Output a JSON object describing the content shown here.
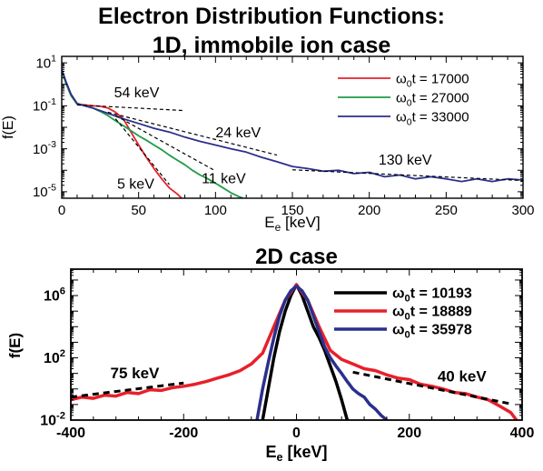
{
  "page": {
    "title_line1": "Electron Distribution Functions:",
    "title_line2": "1D, immobile ion case"
  },
  "chart_data": [
    {
      "type": "line",
      "title": "",
      "xlabel_base": "E",
      "xlabel_sub": "e",
      "xlabel_unit": " [keV]",
      "ylabel": "f(E)",
      "xlim": [
        0,
        300
      ],
      "ylim": [
        5e-06,
        20
      ],
      "yscale": "log",
      "xticks": [
        0,
        50,
        100,
        150,
        200,
        250,
        300
      ],
      "yticks": [
        {
          "value": 10,
          "mantissa": "10",
          "exponent": "1"
        },
        {
          "value": 0.1,
          "mantissa": "10",
          "exponent": "-1"
        },
        {
          "value": 0.001,
          "mantissa": "10",
          "exponent": "-3"
        },
        {
          "value": 1e-05,
          "mantissa": "10",
          "exponent": "-5"
        }
      ],
      "legend_position": "top-right",
      "series": [
        {
          "legend_base": "ω",
          "legend_sub": "0",
          "legend_rest": "t = 17000",
          "color": "#e8202a",
          "x": [
            0,
            3,
            6,
            10,
            15,
            20,
            25,
            30,
            35,
            40,
            45,
            50,
            55,
            60,
            65,
            70,
            75,
            78
          ],
          "y": [
            4,
            1.0,
            0.3,
            0.12,
            0.11,
            0.1,
            0.095,
            0.08,
            0.05,
            0.025,
            0.006,
            0.0015,
            0.0004,
            0.00012,
            4e-05,
            1.5e-05,
            8e-06,
            5e-06
          ]
        },
        {
          "legend_base": "ω",
          "legend_sub": "0",
          "legend_rest": "t = 27000",
          "color": "#1f9b45",
          "x": [
            0,
            3,
            6,
            10,
            15,
            20,
            25,
            30,
            35,
            40,
            45,
            50,
            55,
            60,
            65,
            70,
            75,
            80,
            85,
            90,
            95,
            100,
            105,
            110,
            115,
            118
          ],
          "y": [
            4,
            1.0,
            0.3,
            0.12,
            0.1,
            0.08,
            0.055,
            0.035,
            0.02,
            0.012,
            0.007,
            0.004,
            0.0025,
            0.0015,
            0.0009,
            0.0005,
            0.0003,
            0.00018,
            0.0001,
            6e-05,
            4e-05,
            2.5e-05,
            1.5e-05,
            9e-06,
            6e-06,
            5e-06
          ]
        },
        {
          "legend_base": "ω",
          "legend_sub": "0",
          "legend_rest": "t = 33000",
          "color": "#2b2f8c",
          "x": [
            0,
            3,
            6,
            10,
            15,
            20,
            30,
            40,
            50,
            60,
            70,
            80,
            90,
            100,
            110,
            120,
            130,
            140,
            150,
            160,
            170,
            180,
            190,
            200,
            210,
            220,
            230,
            240,
            250,
            260,
            270,
            280,
            290,
            300
          ],
          "y": [
            5,
            1.2,
            0.35,
            0.13,
            0.1,
            0.08,
            0.045,
            0.025,
            0.015,
            0.009,
            0.006,
            0.0035,
            0.0022,
            0.0015,
            0.001,
            0.0007,
            0.0004,
            0.00025,
            0.00015,
            0.00012,
            9e-05,
            0.0001,
            7e-05,
            8e-05,
            5e-05,
            6e-05,
            4e-05,
            5e-05,
            4e-05,
            3e-05,
            4e-05,
            3e-05,
            4e-05,
            3.5e-05
          ]
        }
      ],
      "fits": [
        {
          "x": [
            10,
            80
          ],
          "y": [
            0.11,
            0.06
          ]
        },
        {
          "x": [
            35,
            70
          ],
          "y": [
            0.025,
            2.15e-05
          ]
        },
        {
          "x": [
            30,
            140
          ],
          "y": [
            0.05,
            0.00051
          ]
        },
        {
          "x": [
            35,
            100
          ],
          "y": [
            0.035,
            9.3e-05
          ]
        },
        {
          "x": [
            150,
            300
          ],
          "y": [
            0.000105,
            3.33e-05
          ]
        }
      ],
      "annotations": [
        {
          "text": "54 keV",
          "x": 34,
          "y": 0.25
        },
        {
          "text": "24 keV",
          "x": 100,
          "y": 0.0035
        },
        {
          "text": "130 keV",
          "x": 206,
          "y": 0.00018
        },
        {
          "text": "5 keV",
          "x": 36,
          "y": 1.4e-05
        },
        {
          "text": "11 keV",
          "x": 91,
          "y": 2.5e-05
        }
      ]
    },
    {
      "type": "line",
      "title": "2D case",
      "xlabel_base": "E",
      "xlabel_sub": "e",
      "xlabel_unit": " [keV]",
      "ylabel": "f(E)",
      "xlim": [
        -400,
        400
      ],
      "ylim": [
        0.01,
        50000000.0
      ],
      "yscale": "log",
      "xticks": [
        -400,
        -200,
        0,
        200,
        400
      ],
      "yticks": [
        {
          "value": 1000000,
          "mantissa": "10",
          "exponent": "6"
        },
        {
          "value": 100,
          "mantissa": "10",
          "exponent": "2"
        },
        {
          "value": 0.01,
          "mantissa": "10",
          "exponent": "-2"
        }
      ],
      "legend_position": "top-right",
      "series": [
        {
          "legend_base": "ω",
          "legend_sub": "0",
          "legend_rest": "t = 10193",
          "color": "#000000",
          "x": [
            -60,
            -50,
            -40,
            -30,
            -20,
            -10,
            0,
            10,
            20,
            30,
            40,
            50,
            60,
            70,
            80,
            90
          ],
          "y": [
            0.01,
            1,
            100,
            5000,
            100000,
            1000000,
            5000000,
            1000000,
            100000,
            10000,
            2000,
            300,
            30,
            3,
            0.2,
            0.01
          ]
        },
        {
          "legend_base": "ω",
          "legend_sub": "0",
          "legend_rest": "t = 18889",
          "color": "#e8202a",
          "x": [
            -400,
            -380,
            -360,
            -340,
            -320,
            -300,
            -280,
            -260,
            -240,
            -220,
            -200,
            -180,
            -160,
            -140,
            -120,
            -100,
            -80,
            -60,
            -40,
            -20,
            0,
            20,
            40,
            60,
            80,
            100,
            120,
            140,
            160,
            180,
            200,
            220,
            240,
            260,
            280,
            300,
            320,
            340,
            360,
            380,
            390
          ],
          "y": [
            0.2,
            0.3,
            0.25,
            0.4,
            0.35,
            0.6,
            0.5,
            0.9,
            0.8,
            1.2,
            1.5,
            2,
            3,
            5,
            8,
            15,
            40,
            200,
            10000,
            500000,
            5000000,
            500000,
            10000,
            300,
            80,
            40,
            20,
            15,
            8,
            5,
            4,
            2,
            1.5,
            1,
            0.6,
            0.5,
            0.3,
            0.2,
            0.08,
            0.03,
            0.01
          ]
        },
        {
          "legend_base": "ω",
          "legend_sub": "0",
          "legend_rest": "t = 35978",
          "color": "#2b2f8c",
          "x": [
            -70,
            -60,
            -50,
            -40,
            -30,
            -20,
            -10,
            0,
            10,
            20,
            30,
            40,
            50,
            60,
            70,
            80,
            90,
            100,
            110,
            120,
            130,
            140,
            150,
            160
          ],
          "y": [
            0.01,
            1,
            50,
            2000,
            50000,
            500000,
            2000000,
            4000000,
            2000000,
            500000,
            50000,
            5000,
            500,
            100,
            30,
            10,
            3,
            1,
            0.5,
            0.3,
            0.1,
            0.05,
            0.02,
            0.01
          ]
        }
      ],
      "fits": [
        {
          "x": [
            -400,
            -200
          ],
          "y": [
            0.3,
            2.4
          ]
        },
        {
          "x": [
            100,
            380
          ],
          "y": [
            12,
            0.11
          ]
        }
      ],
      "annotations": [
        {
          "text": "75 keV",
          "x": -330,
          "y": 5
        },
        {
          "text": "40 keV",
          "x": 250,
          "y": 3
        }
      ]
    }
  ]
}
